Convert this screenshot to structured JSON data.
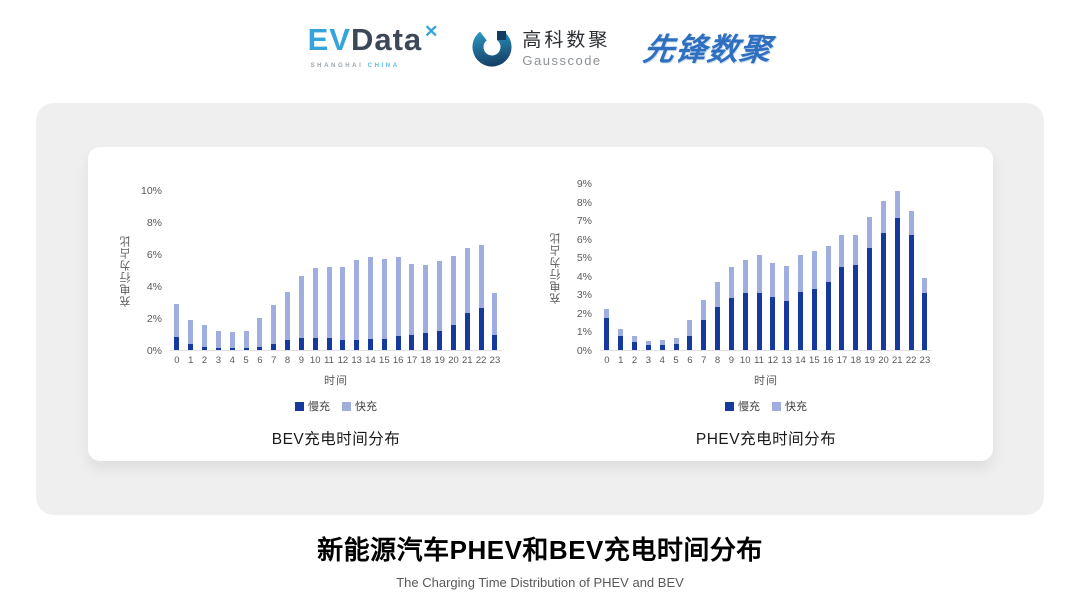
{
  "header": {
    "evdata": {
      "ev": "EV",
      "data": "Data",
      "sub_left": "SHANGHAI",
      "sub_right": "CHINA"
    },
    "gausscode": {
      "cn": "高科数聚",
      "en": "Gausscode"
    },
    "pioneer": "先锋数聚"
  },
  "chart_data": [
    {
      "type": "bar",
      "stacked": true,
      "title": "BEV充电时间分布",
      "ylabel": "充电行为占比",
      "xlabel": "时间",
      "ymax": 10,
      "ylim": [
        0,
        10
      ],
      "yticks": [
        0,
        2,
        4,
        6,
        8,
        10
      ],
      "grid": false,
      "legend_position": "bottom",
      "categories": [
        "0",
        "1",
        "2",
        "3",
        "4",
        "5",
        "6",
        "7",
        "8",
        "9",
        "10",
        "11",
        "12",
        "13",
        "14",
        "15",
        "16",
        "17",
        "18",
        "19",
        "20",
        "21",
        "22",
        "23"
      ],
      "series": [
        {
          "name": "慢充",
          "key": "slow",
          "color": "#16399e",
          "values": [
            0.8,
            0.4,
            0.2,
            0.15,
            0.1,
            0.15,
            0.2,
            0.4,
            0.6,
            0.75,
            0.75,
            0.75,
            0.6,
            0.65,
            0.7,
            0.7,
            0.85,
            0.95,
            1.05,
            1.2,
            1.55,
            2.3,
            2.65,
            0.95
          ]
        },
        {
          "name": "快充",
          "key": "fast",
          "color": "#9faede",
          "values": [
            2.1,
            1.5,
            1.35,
            1.05,
            1.0,
            1.05,
            1.8,
            2.4,
            3.0,
            3.85,
            4.4,
            4.45,
            4.6,
            4.95,
            5.1,
            5.0,
            4.95,
            4.45,
            4.25,
            4.35,
            4.35,
            4.05,
            3.9,
            2.6
          ]
        }
      ]
    },
    {
      "type": "bar",
      "stacked": true,
      "title": "PHEV充电时间分布",
      "ylabel": "充电行为占比",
      "xlabel": "时间",
      "ymax": 9,
      "ylim": [
        0,
        9
      ],
      "yticks": [
        0,
        1,
        2,
        3,
        4,
        5,
        6,
        7,
        8,
        9
      ],
      "grid": false,
      "legend_position": "bottom",
      "categories": [
        "0",
        "1",
        "2",
        "3",
        "4",
        "5",
        "6",
        "7",
        "8",
        "9",
        "10",
        "11",
        "12",
        "13",
        "14",
        "15",
        "16",
        "17",
        "18",
        "19",
        "20",
        "21",
        "22",
        "23"
      ],
      "series": [
        {
          "name": "慢充",
          "key": "slow",
          "color": "#16399e",
          "values": [
            1.75,
            0.75,
            0.45,
            0.25,
            0.25,
            0.3,
            0.75,
            1.6,
            2.3,
            2.8,
            3.05,
            3.05,
            2.85,
            2.65,
            3.15,
            3.3,
            3.65,
            4.45,
            4.6,
            5.5,
            6.3,
            7.1,
            6.2,
            3.1
          ]
        },
        {
          "name": "快充",
          "key": "fast",
          "color": "#9faede",
          "values": [
            0.45,
            0.4,
            0.3,
            0.25,
            0.3,
            0.35,
            0.85,
            1.1,
            1.35,
            1.7,
            1.8,
            2.05,
            1.85,
            1.9,
            1.95,
            2.05,
            1.95,
            1.75,
            1.6,
            1.65,
            1.75,
            1.5,
            1.3,
            0.8
          ]
        }
      ]
    }
  ],
  "footer": {
    "title": "新能源汽车PHEV和BEV充电时间分布",
    "subtitle": "The Charging Time Distribution of PHEV and BEV"
  },
  "colors": {
    "slow_charge": "#16399e",
    "fast_charge": "#9faede",
    "panel_gray": "#efeff0",
    "axis_text": "#595959",
    "evdata_blue": "#35a4dd",
    "evdata_dark": "#3c4757",
    "pioneer_blue": "#2e6fc0"
  }
}
